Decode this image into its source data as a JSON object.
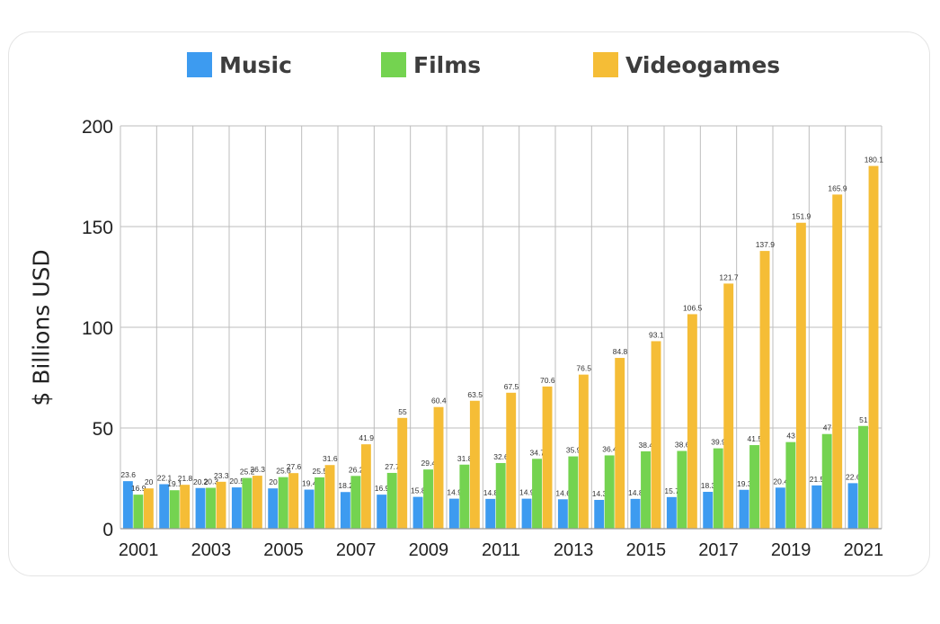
{
  "chart_data": {
    "type": "bar",
    "ylabel": "$ Billions USD",
    "xlabel": "",
    "ylim": [
      0,
      200
    ],
    "yticks": [
      0,
      50,
      100,
      150,
      200
    ],
    "grid": true,
    "legend_position": "top",
    "categories": [
      "2001",
      "2002",
      "2003",
      "2004",
      "2005",
      "2006",
      "2007",
      "2008",
      "2009",
      "2010",
      "2011",
      "2012",
      "2013",
      "2014",
      "2015",
      "2016",
      "2017",
      "2018",
      "2019",
      "2020",
      "2021"
    ],
    "xtick_labels": [
      "2001",
      "2003",
      "2005",
      "2007",
      "2009",
      "2011",
      "2013",
      "2015",
      "2017",
      "2019",
      "2021"
    ],
    "series": [
      {
        "name": "Music",
        "color": "#3d9bf0",
        "values": [
          23.6,
          22.1,
          20.2,
          20.5,
          20,
          19.4,
          18.2,
          16.9,
          15.8,
          14.9,
          14.8,
          14.9,
          14.6,
          14.3,
          14.8,
          15.7,
          18.3,
          19.3,
          20.4,
          21.5,
          22.6
        ],
        "labels": [
          "23.6",
          "22.1",
          "20.2",
          "20.5",
          "20",
          "19.4",
          "18.2",
          "16.9",
          "15.8",
          "14.9",
          "14.8",
          "14.9",
          "14.6",
          "14.3",
          "14.8",
          "15.7",
          "18.3",
          "19.3",
          "20.4",
          "21.5",
          "22.6"
        ]
      },
      {
        "name": "Films",
        "color": "#74d350",
        "values": [
          16.9,
          19.1,
          20.3,
          25.2,
          25.6,
          25.5,
          26.2,
          27.7,
          29.4,
          31.8,
          32.6,
          34.7,
          35.9,
          36.4,
          38.4,
          38.6,
          39.9,
          41.5,
          43,
          47,
          51
        ],
        "labels": [
          "16.9",
          "19.1",
          "20.3",
          "25.2",
          "25.6",
          "25.5",
          "26.2",
          "27.7",
          "29.4",
          "31.8",
          "32.6",
          "34.7",
          "35.9",
          "36.4",
          "38.4",
          "38.6",
          "39.9",
          "41.5",
          "43",
          "47",
          "51"
        ]
      },
      {
        "name": "Videogames",
        "color": "#f5bd36",
        "values": [
          20,
          21.8,
          23.3,
          26.3,
          27.6,
          31.6,
          41.9,
          55,
          60.4,
          63.5,
          67.5,
          70.6,
          76.5,
          84.8,
          93.1,
          106.5,
          121.7,
          137.9,
          151.9,
          165.9,
          180.1
        ],
        "labels": [
          "20",
          "21.8",
          "23.3",
          "26.3",
          "27.6",
          "31.6",
          "41.9",
          "55",
          "60.4",
          "63.5",
          "67.5",
          "70.6",
          "76.5",
          "84.8",
          "93.1",
          "106.5",
          "121.7",
          "137.9",
          "151.9",
          "165.9",
          "180.1"
        ]
      }
    ]
  }
}
